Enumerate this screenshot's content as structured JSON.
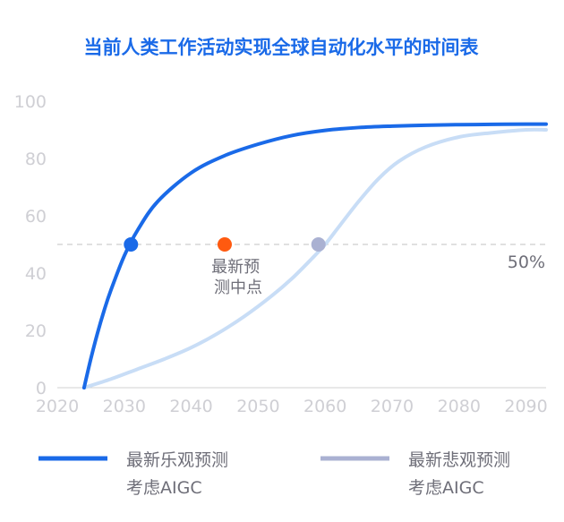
{
  "colors": {
    "title": "#1a6ae8",
    "optimistic": "#1a6ae8",
    "pessimistic": "#c8ddf6",
    "pessimistic_legend": "#aab1d2",
    "pessimistic_point": "#aab1d2",
    "midpoint": "#ff5a10",
    "axis_tick": "#cfcfd4",
    "axis_line": "#d0d0d0",
    "reference": "#d6d6d6",
    "annotation": "#6e6e78",
    "legend_text": "#6e6e78"
  },
  "chart_data": {
    "type": "line",
    "title": "当前人类工作活动实现全球自动化水平的时间表",
    "xlim": [
      2020,
      2093
    ],
    "ylim": [
      0,
      100
    ],
    "x_ticks": [
      "2020",
      "2030",
      "2040",
      "2050",
      "2060",
      "2070",
      "2080",
      "2090"
    ],
    "y_ticks": [
      "0",
      "20",
      "40",
      "60",
      "80",
      "100"
    ],
    "series": [
      {
        "key": "optimistic",
        "name_lines": [
          "最新乐观预测",
          "考虑AIGC"
        ],
        "x": [
          2024,
          2025,
          2026,
          2027,
          2028,
          2030,
          2032,
          2035,
          2040,
          2045,
          2050,
          2055,
          2060,
          2065,
          2070,
          2075,
          2080,
          2085,
          2090,
          2093
        ],
        "y": [
          0,
          10,
          19,
          27,
          34,
          46,
          55,
          65,
          75,
          81,
          85,
          88,
          89.8,
          90.8,
          91.3,
          91.6,
          91.8,
          91.9,
          92,
          92
        ]
      },
      {
        "key": "pessimistic",
        "name_lines": [
          "最新悲观预测",
          "考虑AIGC"
        ],
        "x": [
          2024,
          2028,
          2032,
          2036,
          2040,
          2044,
          2048,
          2052,
          2055,
          2058,
          2060,
          2062,
          2065,
          2068,
          2071,
          2075,
          2080,
          2085,
          2090,
          2093
        ],
        "y": [
          0,
          3,
          6.5,
          10,
          14,
          19,
          25,
          32,
          38,
          45,
          50,
          56,
          65,
          73,
          79,
          84,
          87.5,
          89,
          90,
          90
        ]
      }
    ],
    "reference_line": {
      "y": 50,
      "label": "50%"
    },
    "points": [
      {
        "key": "optimistic",
        "x": 2031,
        "y": 50
      },
      {
        "key": "midpoint",
        "x": 2045,
        "y": 50,
        "label_lines": [
          "最新预",
          "测中点"
        ]
      },
      {
        "key": "pessimistic",
        "x": 2059,
        "y": 50
      }
    ],
    "grid": false,
    "legend_position": "bottom"
  }
}
